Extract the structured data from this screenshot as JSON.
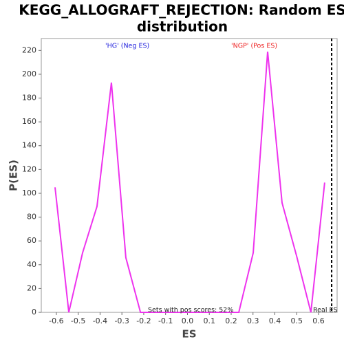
{
  "chart_data": {
    "type": "line",
    "title": "KEGG_ALLOGRAFT_REJECTION: Random ES distribution",
    "x_label": "ES",
    "y_label": "P(ES)",
    "x": [
      -0.606,
      -0.543,
      -0.48,
      -0.414,
      -0.348,
      -0.282,
      -0.215,
      0.235,
      0.301,
      0.367,
      0.433,
      0.5,
      0.565,
      0.628
    ],
    "series": [
      {
        "name": "P(ES)",
        "color": "#ee33ee",
        "values": [
          105,
          0,
          50,
          89,
          193,
          46,
          0,
          0,
          50,
          219,
          92,
          47,
          0,
          109
        ]
      }
    ],
    "xlim": [
      -0.669,
      0.685
    ],
    "ylim": [
      0,
      230
    ],
    "xticks": [
      -0.6,
      -0.5,
      -0.4,
      -0.3,
      -0.2,
      -0.1,
      {
        "value": 0,
        "label": "0.0"
      },
      0.1,
      0.2,
      0.3,
      0.4,
      0.5,
      0.6
    ],
    "yticks": [
      0,
      20,
      40,
      60,
      80,
      100,
      120,
      140,
      160,
      180,
      200,
      220
    ],
    "annotations": [
      {
        "text": "'HG' (Neg ES)",
        "color": "#2222dd"
      },
      {
        "text": "'NGP' (Pos ES)",
        "color": "#ee2222"
      },
      {
        "text": "Sets with pos scores: 52%",
        "color": "#222222"
      },
      {
        "text": "Real ES",
        "color": "#222222"
      }
    ],
    "real_es": 0.66
  }
}
